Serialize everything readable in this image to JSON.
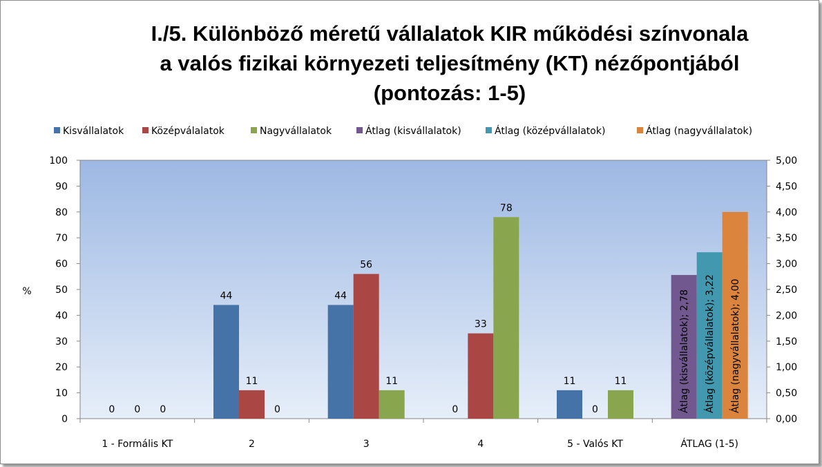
{
  "chart_data": {
    "type": "bar",
    "title_lines": [
      "I./5. Különböző méretű vállalatok KIR működési színvonala",
      "a valós fizikai környezeti teljesítmény (KT) nézőpontjából",
      "(pontozás: 1-5)"
    ],
    "ylabel": "%",
    "ylim": [
      0,
      100
    ],
    "y_ticks": [
      "0",
      "10",
      "20",
      "30",
      "40",
      "50",
      "60",
      "70",
      "80",
      "90",
      "100"
    ],
    "y2lim": [
      0,
      5
    ],
    "y2_ticks": [
      "0,00",
      "0,50",
      "1,00",
      "1,50",
      "2,00",
      "2,50",
      "3,00",
      "3,50",
      "4,00",
      "4,50",
      "5,00"
    ],
    "legend_position": "top",
    "grid": false,
    "categories": [
      "1 - Formális KT",
      "2",
      "3",
      "4",
      "5 - Valós KT",
      "ÁTLAG (1-5)"
    ],
    "series": [
      {
        "name": "Kisvállalatok",
        "color": "#4572A7",
        "axis": "left",
        "values": [
          0,
          44,
          44,
          0,
          11,
          null
        ],
        "labels": [
          "0",
          "44",
          "44",
          "0",
          "11",
          ""
        ]
      },
      {
        "name": "Középválalatok",
        "color": "#AA4643",
        "axis": "left",
        "values": [
          0,
          11,
          56,
          33,
          0,
          null
        ],
        "labels": [
          "0",
          "11",
          "56",
          "33",
          "0",
          ""
        ]
      },
      {
        "name": "Nagyvállalatok",
        "color": "#89A54E",
        "axis": "left",
        "values": [
          0,
          0,
          11,
          78,
          11,
          null
        ],
        "labels": [
          "0",
          "0",
          "11",
          "78",
          "11",
          ""
        ]
      },
      {
        "name": "Átlag (kisvállalatok)",
        "color": "#71588F",
        "axis": "right",
        "values": [
          null,
          null,
          null,
          null,
          null,
          2.78
        ],
        "labels": [
          "",
          "",
          "",
          "",
          "",
          "Átlag (kisvállalatok); 2,78"
        ]
      },
      {
        "name": "Átlag (középvállalatok)",
        "color": "#4198AF",
        "axis": "right",
        "values": [
          null,
          null,
          null,
          null,
          null,
          3.22
        ],
        "labels": [
          "",
          "",
          "",
          "",
          "",
          "Átlag (középvállalatok); 3,22"
        ]
      },
      {
        "name": "Átlag (nagyvállalatok)",
        "color": "#DB843D",
        "axis": "right",
        "values": [
          null,
          null,
          null,
          null,
          null,
          4.0
        ],
        "labels": [
          "",
          "",
          "",
          "",
          "",
          "Átlag (nagyvállalatok); 4,00"
        ]
      }
    ],
    "plot_background": [
      "#9DB8E3",
      "#E6EEF9"
    ]
  }
}
